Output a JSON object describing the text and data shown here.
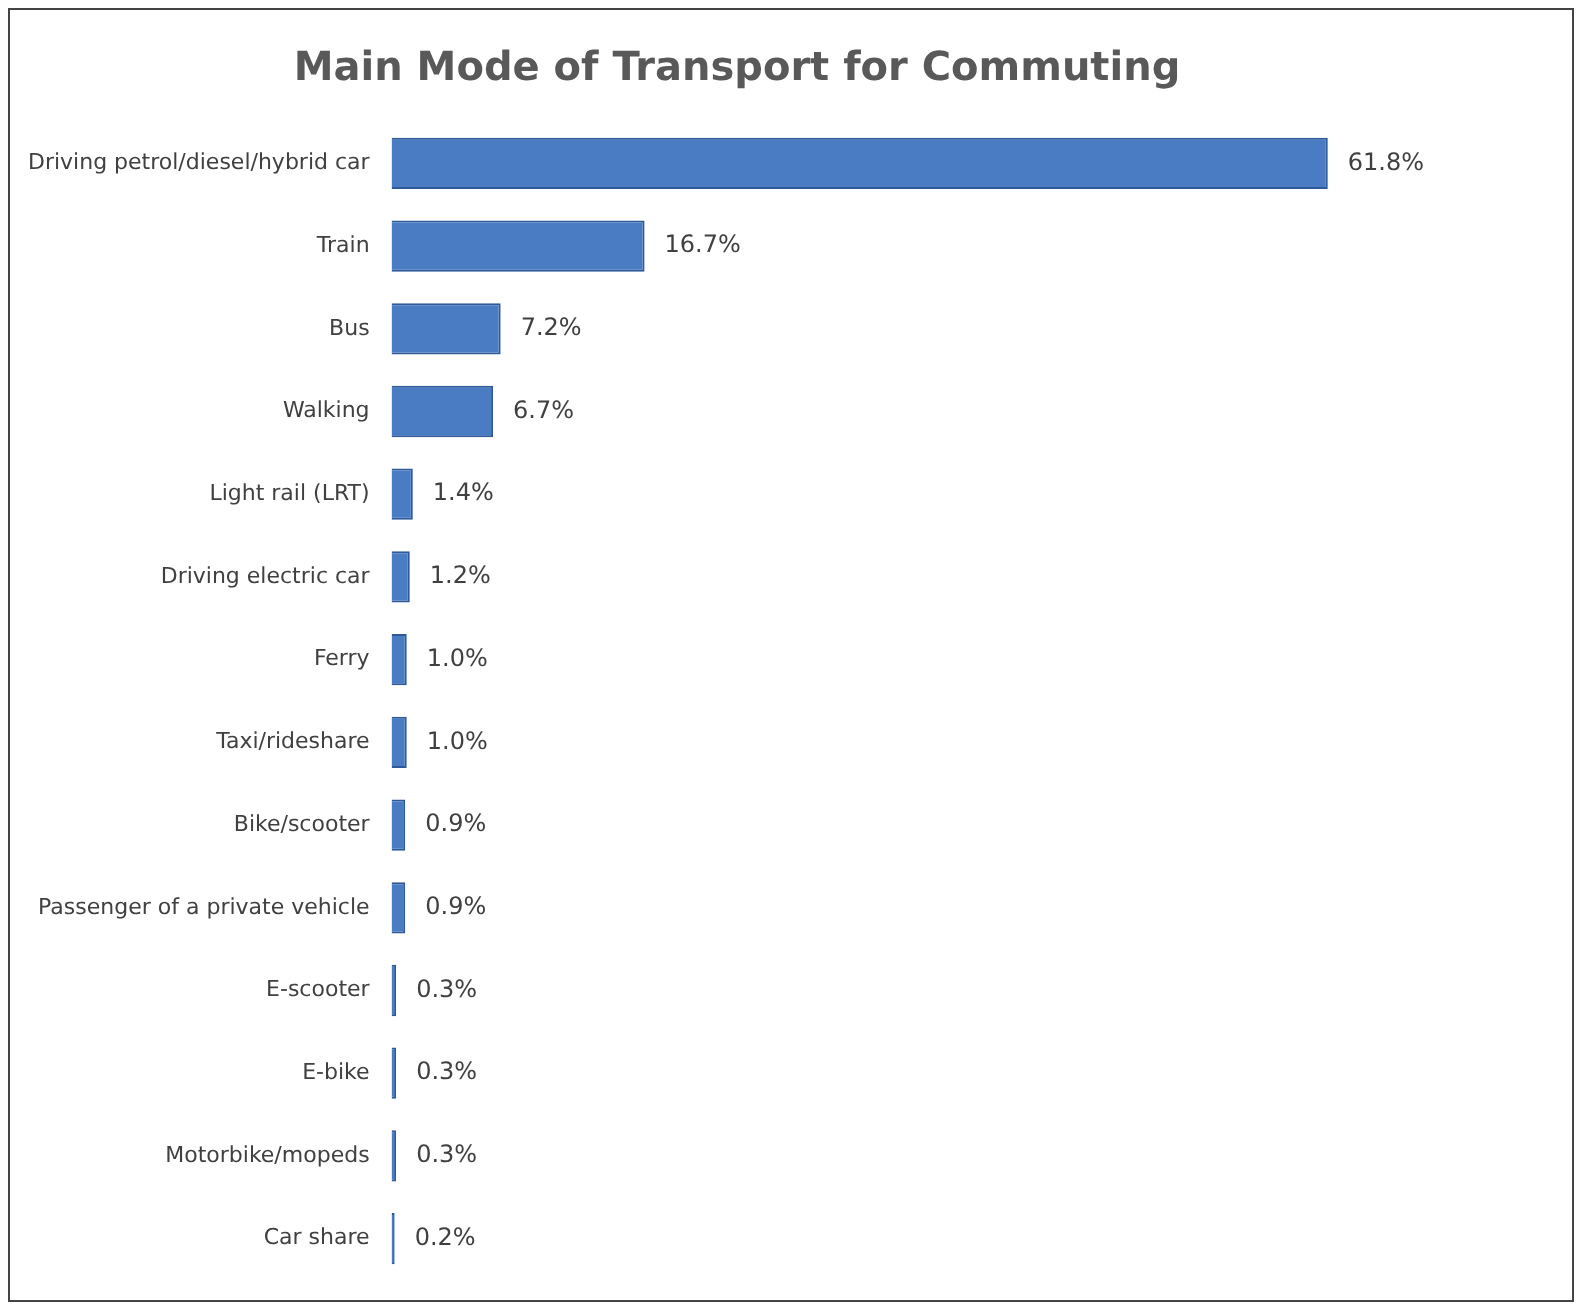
{
  "chart_data": {
    "type": "bar",
    "orientation": "horizontal",
    "title": "Main Mode of Transport for Commuting",
    "categories": [
      "Driving petrol/diesel/hybrid car",
      "Train",
      "Bus",
      "Walking",
      "Light rail (LRT)",
      "Driving electric car",
      "Ferry",
      "Taxi/rideshare",
      "Bike/scooter",
      "Passenger of a private vehicle",
      "E-scooter",
      "E-bike",
      "Motorbike/mopeds",
      "Car share"
    ],
    "values": [
      61.8,
      16.7,
      7.2,
      6.7,
      1.4,
      1.2,
      1.0,
      1.0,
      0.9,
      0.9,
      0.3,
      0.3,
      0.3,
      0.2
    ],
    "value_labels": [
      "61.8%",
      "16.7%",
      "7.2%",
      "6.7%",
      "1.4%",
      "1.2%",
      "1.0%",
      "1.0%",
      "0.9%",
      "0.9%",
      "0.3%",
      "0.3%",
      "0.3%",
      "0.2%"
    ],
    "color": "#4a7cc4",
    "tick_labels": "y"
  }
}
